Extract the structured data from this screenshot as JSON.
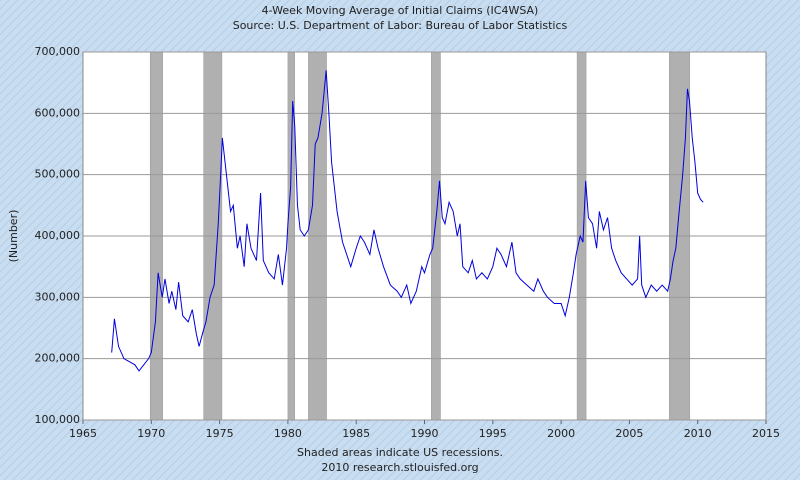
{
  "chart_data": {
    "type": "line",
    "title": "4-Week Moving Average of Initial Claims (IC4WSA)",
    "subtitle": "Source: U.S. Department of Labor: Bureau of Labor Statistics",
    "y_label": "(Number)",
    "footnote": "Shaded areas indicate US recessions.",
    "credit": "2010 research.stlouisfed.org",
    "color": "#0000dd",
    "grid": true,
    "xlim": [
      1965,
      2015
    ],
    "xticks": [
      1965,
      1970,
      1975,
      1980,
      1985,
      1990,
      1995,
      2000,
      2005,
      2010,
      2015
    ],
    "ylim": [
      100000,
      700000
    ],
    "yticks": [
      {
        "value": 100000,
        "label": "100,000"
      },
      {
        "value": 200000,
        "label": "200,000"
      },
      {
        "value": 300000,
        "label": "300,000"
      },
      {
        "value": 400000,
        "label": "400,000"
      },
      {
        "value": 500000,
        "label": "500,000"
      },
      {
        "value": 600000,
        "label": "600,000"
      },
      {
        "value": 700000,
        "label": "700,000"
      }
    ],
    "recessions": [
      [
        1969.92,
        1970.83
      ],
      [
        1973.83,
        1975.17
      ],
      [
        1980.0,
        1980.5
      ],
      [
        1981.5,
        1982.83
      ],
      [
        1990.5,
        1991.17
      ],
      [
        2001.17,
        2001.83
      ],
      [
        2007.92,
        2009.42
      ]
    ],
    "x": [
      1967.1,
      1967.3,
      1967.6,
      1968.0,
      1968.8,
      1969.1,
      1969.8,
      1970.0,
      1970.3,
      1970.5,
      1970.8,
      1971.0,
      1971.3,
      1971.5,
      1971.8,
      1972.0,
      1972.3,
      1972.7,
      1973.0,
      1973.3,
      1973.5,
      1973.8,
      1974.0,
      1974.3,
      1974.6,
      1974.9,
      1975.1,
      1975.2,
      1975.3,
      1975.6,
      1975.8,
      1976.0,
      1976.3,
      1976.5,
      1976.8,
      1977.0,
      1977.3,
      1977.7,
      1978.0,
      1978.2,
      1978.6,
      1979.0,
      1979.3,
      1979.6,
      1979.9,
      1980.0,
      1980.2,
      1980.35,
      1980.5,
      1980.7,
      1980.9,
      1981.2,
      1981.5,
      1981.8,
      1982.0,
      1982.2,
      1982.5,
      1982.8,
      1983.0,
      1983.2,
      1983.6,
      1984.0,
      1984.3,
      1984.6,
      1985.0,
      1985.3,
      1985.6,
      1986.0,
      1986.3,
      1986.6,
      1987.0,
      1987.5,
      1988.0,
      1988.3,
      1988.7,
      1989.0,
      1989.4,
      1989.8,
      1990.0,
      1990.4,
      1990.6,
      1990.9,
      1991.1,
      1991.3,
      1991.5,
      1991.8,
      1992.1,
      1992.4,
      1992.6,
      1992.8,
      1993.2,
      1993.5,
      1993.8,
      1994.2,
      1994.6,
      1995.0,
      1995.3,
      1995.6,
      1996.0,
      1996.4,
      1996.7,
      1997.0,
      1997.5,
      1998.0,
      1998.3,
      1998.7,
      1999.0,
      1999.5,
      2000.0,
      2000.3,
      2000.6,
      2000.9,
      2001.1,
      2001.4,
      2001.6,
      2001.8,
      2002.0,
      2002.3,
      2002.6,
      2002.8,
      2003.1,
      2003.4,
      2003.7,
      2004.0,
      2004.4,
      2004.8,
      2005.2,
      2005.6,
      2005.75,
      2005.9,
      2006.2,
      2006.6,
      2007.0,
      2007.4,
      2007.8,
      2008.0,
      2008.2,
      2008.4,
      2008.6,
      2008.9,
      2009.1,
      2009.25,
      2009.4,
      2009.6,
      2009.8,
      2010.0,
      2010.2,
      2010.4
    ],
    "values": [
      210000,
      265000,
      220000,
      200000,
      190000,
      180000,
      200000,
      210000,
      260000,
      340000,
      300000,
      330000,
      290000,
      310000,
      280000,
      325000,
      270000,
      260000,
      280000,
      240000,
      220000,
      245000,
      260000,
      300000,
      320000,
      420000,
      510000,
      560000,
      540000,
      480000,
      440000,
      450000,
      380000,
      400000,
      350000,
      420000,
      380000,
      360000,
      470000,
      360000,
      340000,
      330000,
      370000,
      320000,
      380000,
      420000,
      480000,
      620000,
      580000,
      450000,
      410000,
      400000,
      410000,
      450000,
      550000,
      560000,
      600000,
      670000,
      600000,
      520000,
      440000,
      390000,
      370000,
      350000,
      380000,
      400000,
      390000,
      370000,
      410000,
      380000,
      350000,
      320000,
      310000,
      300000,
      320000,
      290000,
      310000,
      350000,
      340000,
      370000,
      380000,
      440000,
      490000,
      430000,
      420000,
      455000,
      440000,
      400000,
      420000,
      350000,
      340000,
      360000,
      330000,
      340000,
      330000,
      350000,
      380000,
      370000,
      350000,
      390000,
      340000,
      330000,
      320000,
      310000,
      330000,
      310000,
      300000,
      290000,
      290000,
      270000,
      300000,
      340000,
      370000,
      400000,
      390000,
      490000,
      430000,
      420000,
      380000,
      440000,
      410000,
      430000,
      380000,
      360000,
      340000,
      330000,
      320000,
      330000,
      400000,
      320000,
      300000,
      320000,
      310000,
      320000,
      310000,
      330000,
      360000,
      380000,
      430000,
      500000,
      560000,
      640000,
      620000,
      560000,
      520000,
      470000,
      460000,
      455000
    ]
  }
}
